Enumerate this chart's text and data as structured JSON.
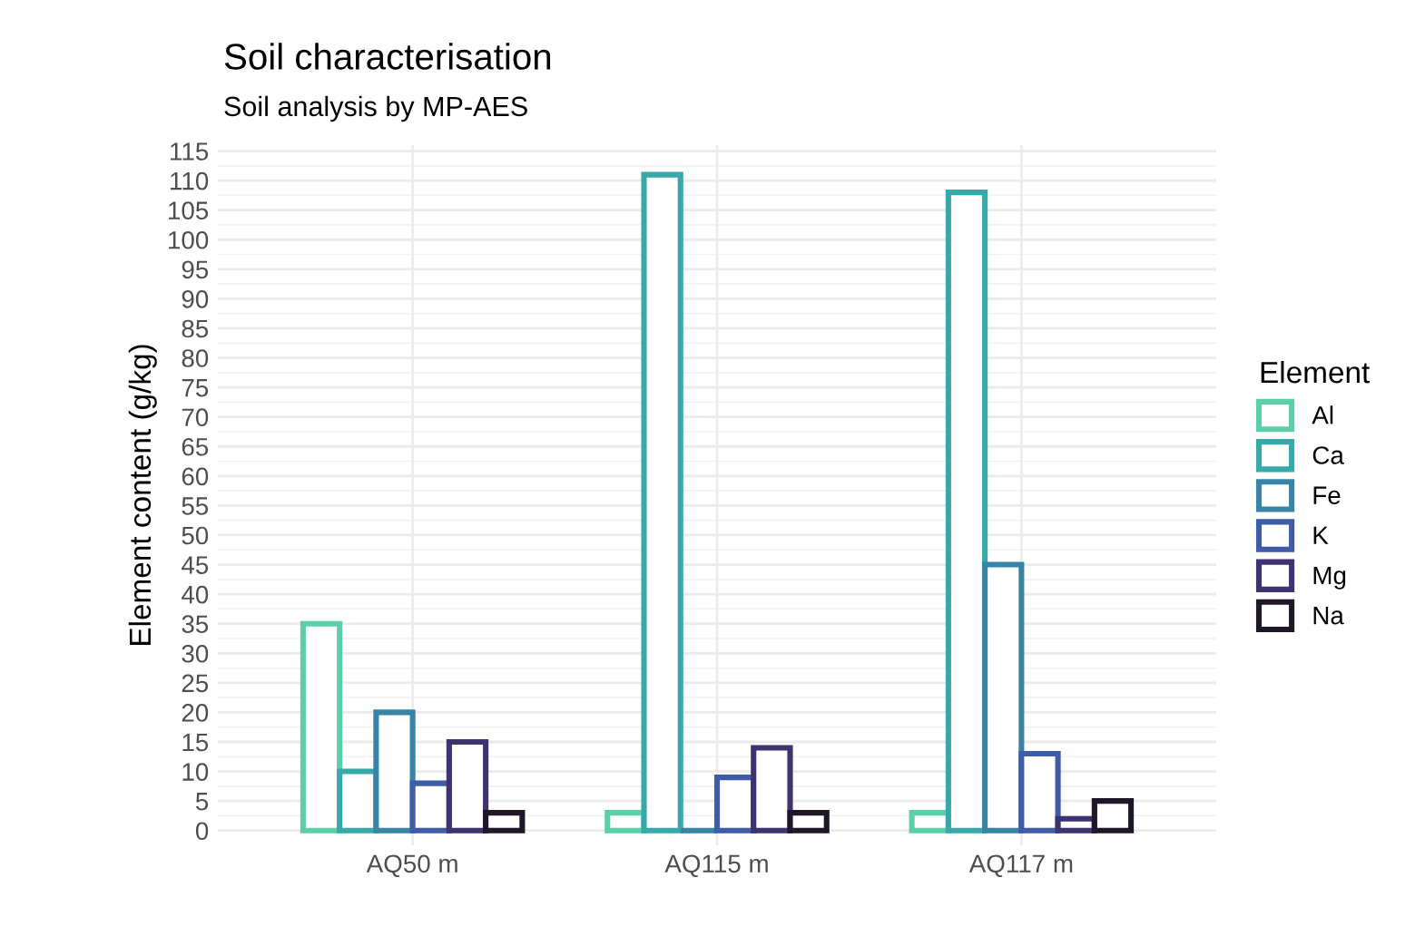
{
  "chart_data": {
    "type": "bar",
    "title": "Soil characterisation",
    "subtitle": "Soil analysis by MP-AES",
    "ylabel": "Element content (g/kg)",
    "legend_title": "Element",
    "categories": [
      "AQ50 m",
      "AQ115 m",
      "AQ117 m"
    ],
    "series": [
      {
        "name": "Al",
        "color": "#5ccfa8",
        "values": [
          35,
          3,
          3
        ]
      },
      {
        "name": "Ca",
        "color": "#38a9ab",
        "values": [
          10,
          111,
          108
        ]
      },
      {
        "name": "Fe",
        "color": "#3784a6",
        "values": [
          20,
          0,
          45
        ]
      },
      {
        "name": "K",
        "color": "#3f5ca8",
        "values": [
          8,
          9,
          13
        ]
      },
      {
        "name": "Mg",
        "color": "#3e3370",
        "values": [
          15,
          14,
          2
        ]
      },
      {
        "name": "Na",
        "color": "#1f1727",
        "values": [
          3,
          3,
          5
        ]
      }
    ],
    "ylim": [
      -2.5,
      116
    ],
    "yticks": [
      0,
      5,
      10,
      15,
      20,
      25,
      30,
      35,
      40,
      45,
      50,
      55,
      60,
      65,
      70,
      75,
      80,
      85,
      90,
      95,
      100,
      105,
      110,
      115
    ],
    "grid": true,
    "legend": "right"
  }
}
